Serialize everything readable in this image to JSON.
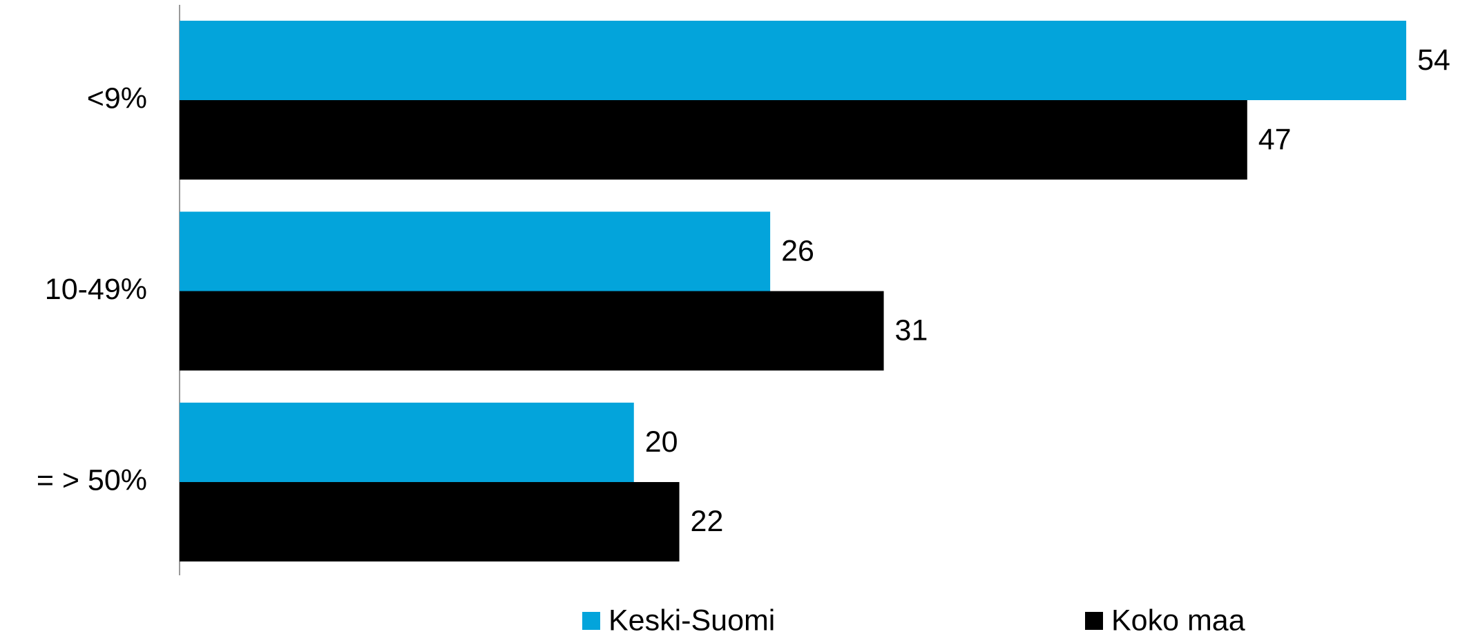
{
  "chart_data": {
    "type": "bar",
    "orientation": "horizontal",
    "categories": [
      "<9%",
      "10-49%",
      "= > 50%"
    ],
    "series": [
      {
        "name": "Keski-Suomi",
        "color": "#03a4db",
        "values": [
          54,
          26,
          20
        ]
      },
      {
        "name": "Koko maa",
        "color": "#000000",
        "values": [
          47,
          31,
          22
        ]
      }
    ],
    "legend": "bottom"
  }
}
